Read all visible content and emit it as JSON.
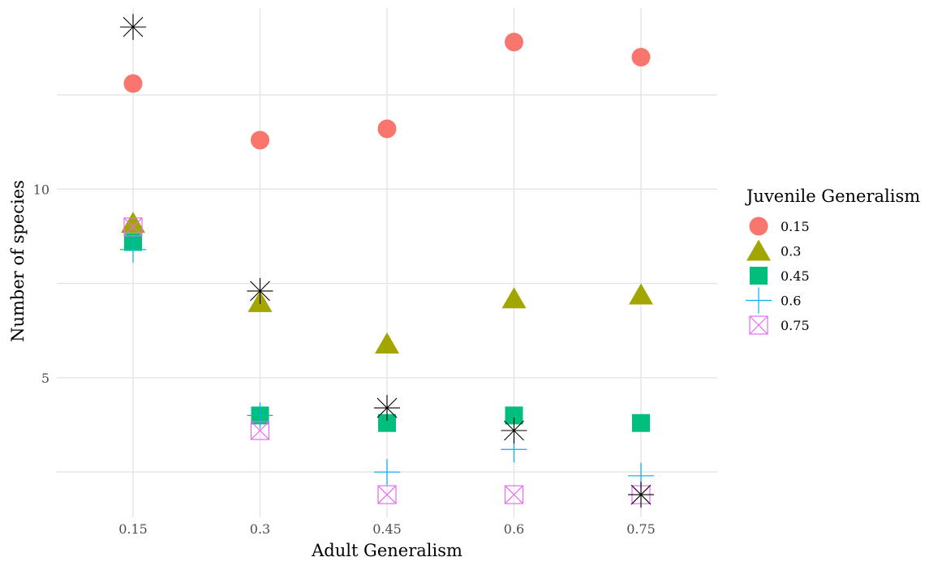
{
  "chart_data": {
    "type": "scatter",
    "xlabel": "Adult Generalism",
    "ylabel": "Number of species",
    "categories": [
      "0.15",
      "0.3",
      "0.45",
      "0.6",
      "0.75"
    ],
    "y_ticks": [
      5,
      10
    ],
    "ylim": [
      1.3,
      14.8
    ],
    "grid": true,
    "legend": {
      "title": "Juvenile Generalism",
      "placement": "right",
      "entries": [
        "0.15",
        "0.3",
        "0.45",
        "0.6",
        "0.75"
      ]
    },
    "series": [
      {
        "name": "0.15",
        "shape": "circle",
        "color": "#F8766D",
        "values": [
          12.8,
          11.3,
          11.6,
          13.9,
          13.5
        ]
      },
      {
        "name": "0.3",
        "shape": "triangle",
        "color": "#A3A500",
        "values": [
          9.1,
          7.0,
          5.9,
          7.1,
          7.2
        ]
      },
      {
        "name": "0.45",
        "shape": "square",
        "color": "#00BF7D",
        "values": [
          8.6,
          4.0,
          3.8,
          4.0,
          3.8
        ]
      },
      {
        "name": "0.6",
        "shape": "plus",
        "color": "#00B0F6",
        "values": [
          8.4,
          4.0,
          2.5,
          3.1,
          2.4
        ]
      },
      {
        "name": "0.75",
        "shape": "boxcross",
        "color": "#E76BF3",
        "values": [
          9.0,
          3.6,
          1.9,
          1.9,
          1.9
        ]
      },
      {
        "shape": "asterisk",
        "color": "#000000",
        "values": [
          14.3,
          7.3,
          4.2,
          3.6,
          1.9
        ]
      }
    ]
  }
}
